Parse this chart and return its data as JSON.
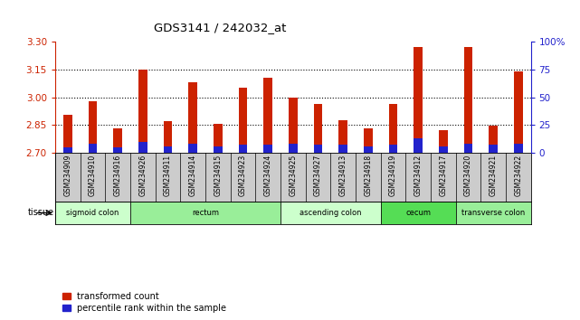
{
  "title": "GDS3141 / 242032_at",
  "samples": [
    "GSM234909",
    "GSM234910",
    "GSM234916",
    "GSM234926",
    "GSM234911",
    "GSM234914",
    "GSM234915",
    "GSM234923",
    "GSM234924",
    "GSM234925",
    "GSM234927",
    "GSM234913",
    "GSM234918",
    "GSM234919",
    "GSM234912",
    "GSM234917",
    "GSM234920",
    "GSM234921",
    "GSM234922"
  ],
  "transformed_count": [
    2.905,
    2.98,
    2.83,
    3.15,
    2.87,
    3.08,
    2.855,
    3.05,
    3.105,
    3.0,
    2.965,
    2.875,
    2.83,
    2.965,
    3.27,
    2.82,
    3.27,
    2.845,
    3.14
  ],
  "percentile_rank_pct": [
    5,
    8,
    5,
    10,
    6,
    8,
    6,
    7,
    7,
    8,
    7,
    7,
    6,
    7,
    13,
    6,
    8,
    7,
    8
  ],
  "ylim_left": [
    2.7,
    3.3
  ],
  "yticks_left": [
    2.7,
    2.85,
    3.0,
    3.15,
    3.3
  ],
  "ylim_right": [
    0,
    100
  ],
  "yticks_right": [
    0,
    25,
    50,
    75,
    100
  ],
  "grid_lines": [
    2.85,
    3.0,
    3.15
  ],
  "tissue_groups": [
    {
      "label": "sigmoid colon",
      "start": 0,
      "end": 3,
      "color": "#ccffcc"
    },
    {
      "label": "rectum",
      "start": 3,
      "end": 9,
      "color": "#99ee99"
    },
    {
      "label": "ascending colon",
      "start": 9,
      "end": 13,
      "color": "#ccffcc"
    },
    {
      "label": "cecum",
      "start": 13,
      "end": 16,
      "color": "#55dd55"
    },
    {
      "label": "transverse colon",
      "start": 16,
      "end": 19,
      "color": "#99ee99"
    }
  ],
  "bar_color_red": "#cc2200",
  "bar_color_blue": "#2222cc",
  "bar_width": 0.35,
  "tick_color_left": "#cc2200",
  "tick_color_right": "#2222cc",
  "bg_plot": "#ffffff",
  "bg_sample": "#cccccc"
}
